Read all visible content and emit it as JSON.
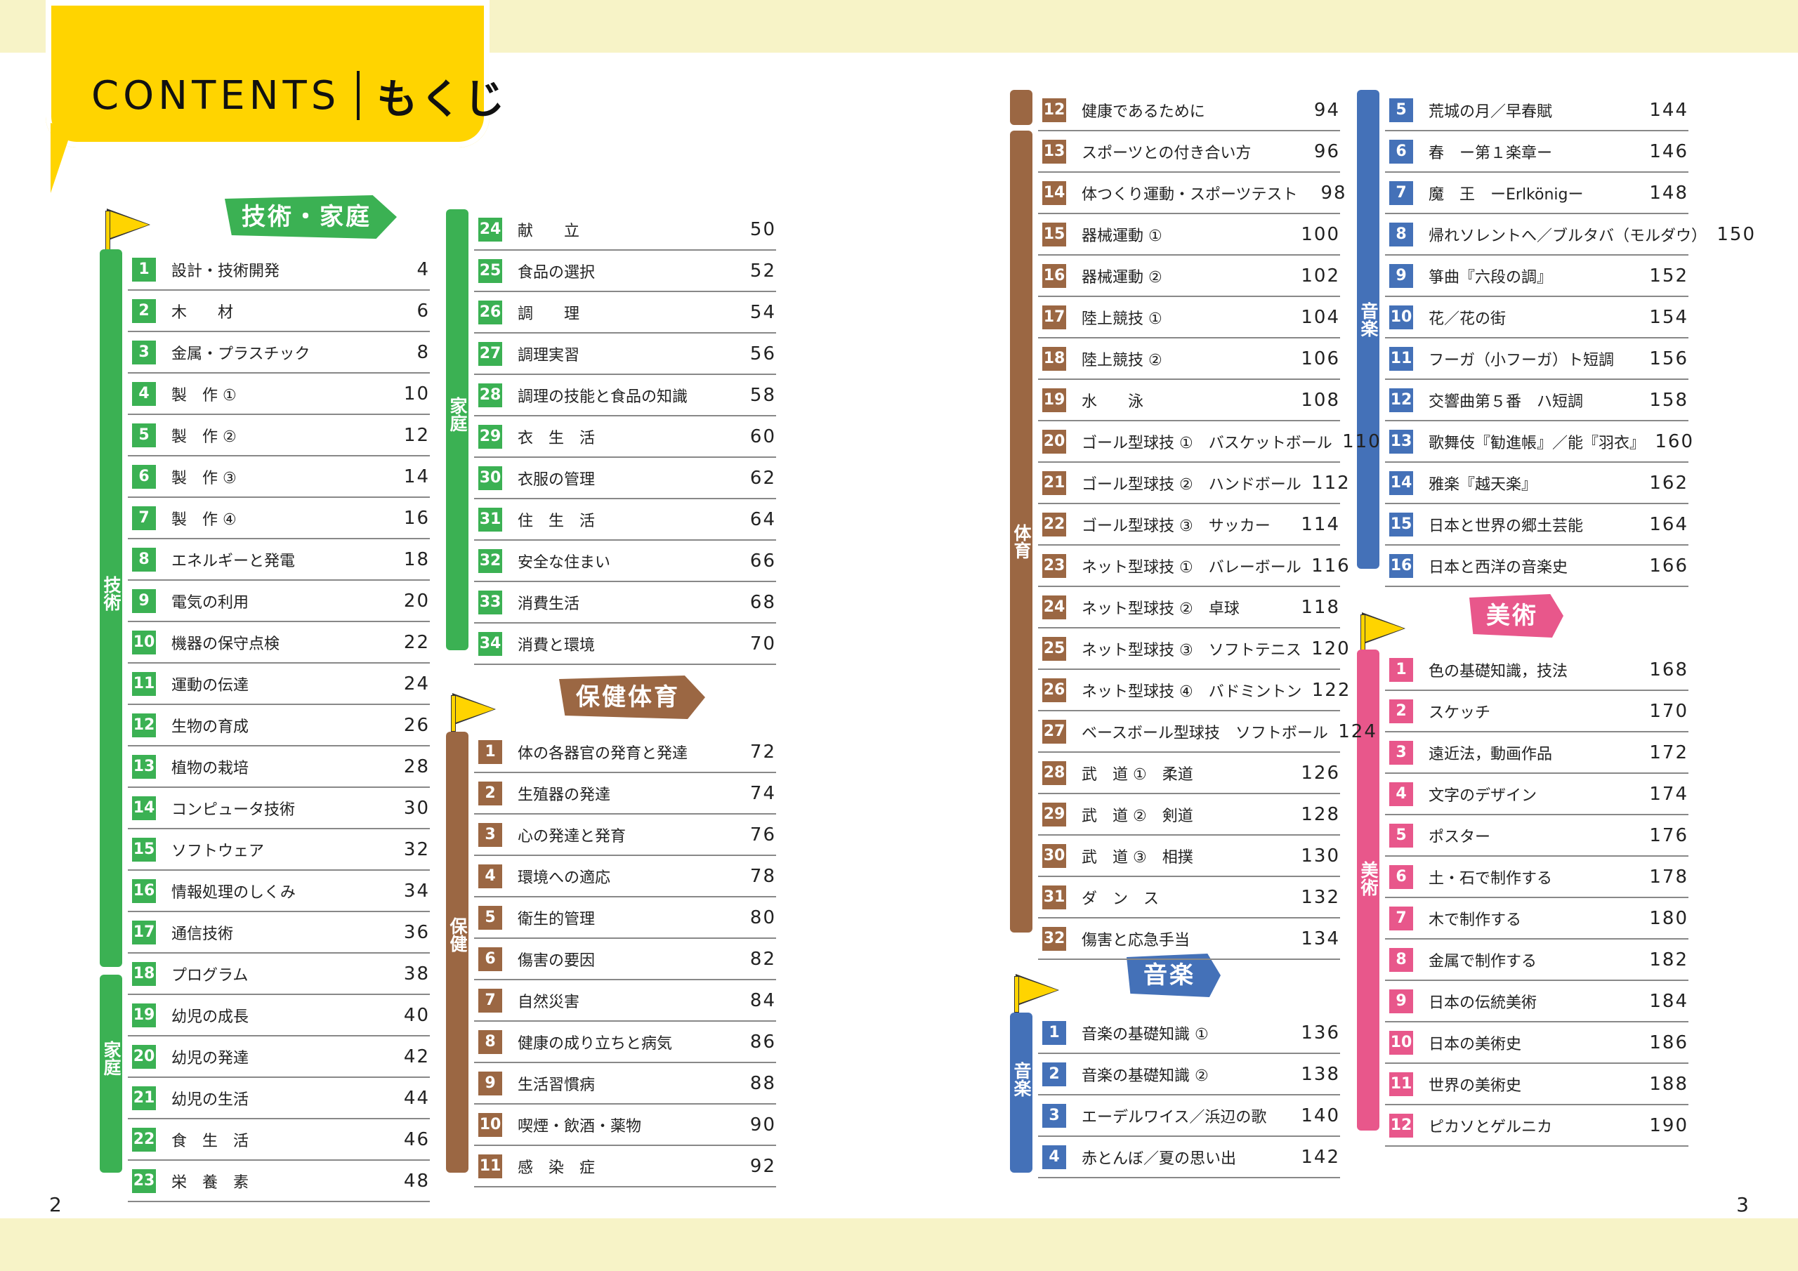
{
  "header": {
    "title_en": "CONTENTS",
    "title_jp": "もくじ"
  },
  "colors": {
    "green": "#3bb153",
    "brown": "#9b6743",
    "blue": "#4471b8",
    "pink": "#e8578b",
    "yellow": "#ffd400"
  },
  "tags": {
    "gijutsu_katei": "技術・家庭",
    "hoken_taiiku": "保健体育",
    "ongaku": "音楽",
    "bijutsu": "美術"
  },
  "bars": {
    "gijutsu": "技術",
    "katei_left": "家庭",
    "katei_mid": "家庭",
    "hoken": "保健",
    "taiiku": "体育",
    "ongaku_top": "音楽",
    "ongaku_bottom": "音楽",
    "bijutsu": "美術"
  },
  "lists": {
    "gijutsu_katei_1": [
      {
        "num": "1",
        "title": "設計・技術開発",
        "page": "4"
      },
      {
        "num": "2",
        "title": "木　　材",
        "page": "6"
      },
      {
        "num": "3",
        "title": "金属・プラスチック",
        "page": "8"
      },
      {
        "num": "4",
        "title": "製　作 ①",
        "page": "10"
      },
      {
        "num": "5",
        "title": "製　作 ②",
        "page": "12"
      },
      {
        "num": "6",
        "title": "製　作 ③",
        "page": "14"
      },
      {
        "num": "7",
        "title": "製　作 ④",
        "page": "16"
      },
      {
        "num": "8",
        "title": "エネルギーと発電",
        "page": "18"
      },
      {
        "num": "9",
        "title": "電気の利用",
        "page": "20"
      },
      {
        "num": "10",
        "title": "機器の保守点検",
        "page": "22"
      },
      {
        "num": "11",
        "title": "運動の伝達",
        "page": "24"
      },
      {
        "num": "12",
        "title": "生物の育成",
        "page": "26"
      },
      {
        "num": "13",
        "title": "植物の栽培",
        "page": "28"
      },
      {
        "num": "14",
        "title": "コンピュータ技術",
        "page": "30"
      },
      {
        "num": "15",
        "title": "ソフトウェア",
        "page": "32"
      },
      {
        "num": "16",
        "title": "情報処理のしくみ",
        "page": "34"
      },
      {
        "num": "17",
        "title": "通信技術",
        "page": "36"
      },
      {
        "num": "18",
        "title": "プログラム",
        "page": "38"
      },
      {
        "num": "19",
        "title": "幼児の成長",
        "page": "40"
      },
      {
        "num": "20",
        "title": "幼児の発達",
        "page": "42"
      },
      {
        "num": "21",
        "title": "幼児の生活",
        "page": "44"
      },
      {
        "num": "22",
        "title": "食　生　活",
        "page": "46"
      },
      {
        "num": "23",
        "title": "栄　養　素",
        "page": "48"
      }
    ],
    "gijutsu_katei_2": [
      {
        "num": "24",
        "title": "献　　立",
        "page": "50"
      },
      {
        "num": "25",
        "title": "食品の選択",
        "page": "52"
      },
      {
        "num": "26",
        "title": "調　　理",
        "page": "54"
      },
      {
        "num": "27",
        "title": "調理実習",
        "page": "56"
      },
      {
        "num": "28",
        "title": "調理の技能と食品の知識",
        "page": "58"
      },
      {
        "num": "29",
        "title": "衣　生　活",
        "page": "60"
      },
      {
        "num": "30",
        "title": "衣服の管理",
        "page": "62"
      },
      {
        "num": "31",
        "title": "住　生　活",
        "page": "64"
      },
      {
        "num": "32",
        "title": "安全な住まい",
        "page": "66"
      },
      {
        "num": "33",
        "title": "消費生活",
        "page": "68"
      },
      {
        "num": "34",
        "title": "消費と環境",
        "page": "70"
      }
    ],
    "hoken_taiiku_1": [
      {
        "num": "1",
        "title": "体の各器官の発育と発達",
        "page": "72"
      },
      {
        "num": "2",
        "title": "生殖器の発達",
        "page": "74"
      },
      {
        "num": "3",
        "title": "心の発達と発育",
        "page": "76"
      },
      {
        "num": "4",
        "title": "環境への適応",
        "page": "78"
      },
      {
        "num": "5",
        "title": "衛生的管理",
        "page": "80"
      },
      {
        "num": "6",
        "title": "傷害の要因",
        "page": "82"
      },
      {
        "num": "7",
        "title": "自然災害",
        "page": "84"
      },
      {
        "num": "8",
        "title": "健康の成り立ちと病気",
        "page": "86"
      },
      {
        "num": "9",
        "title": "生活習慣病",
        "page": "88"
      },
      {
        "num": "10",
        "title": "喫煙・飲酒・薬物",
        "page": "90"
      },
      {
        "num": "11",
        "title": "感　染　症",
        "page": "92"
      }
    ],
    "hoken_taiiku_2": [
      {
        "num": "12",
        "title": "健康であるために",
        "page": "94"
      },
      {
        "num": "13",
        "title": "スポーツとの付き合い方",
        "page": "96"
      },
      {
        "num": "14",
        "title": "体つくり運動・スポーツテスト",
        "page": "98"
      },
      {
        "num": "15",
        "title": "器械運動 ①",
        "page": "100"
      },
      {
        "num": "16",
        "title": "器械運動 ②",
        "page": "102"
      },
      {
        "num": "17",
        "title": "陸上競技 ①",
        "page": "104"
      },
      {
        "num": "18",
        "title": "陸上競技 ②",
        "page": "106"
      },
      {
        "num": "19",
        "title": "水　　泳",
        "page": "108"
      },
      {
        "num": "20",
        "title": "ゴール型球技 ①　バスケットボール",
        "page": "110"
      },
      {
        "num": "21",
        "title": "ゴール型球技 ②　ハンドボール",
        "page": "112"
      },
      {
        "num": "22",
        "title": "ゴール型球技 ③　サッカー",
        "page": "114"
      },
      {
        "num": "23",
        "title": "ネット型球技 ①　バレーボール",
        "page": "116"
      },
      {
        "num": "24",
        "title": "ネット型球技 ②　卓球",
        "page": "118"
      },
      {
        "num": "25",
        "title": "ネット型球技 ③　ソフトテニス",
        "page": "120"
      },
      {
        "num": "26",
        "title": "ネット型球技 ④　バドミントン",
        "page": "122"
      },
      {
        "num": "27",
        "title": "ベースボール型球技　ソフトボール",
        "page": "124"
      },
      {
        "num": "28",
        "title": "武　道 ①　柔道",
        "page": "126"
      },
      {
        "num": "29",
        "title": "武　道 ②　剣道",
        "page": "128"
      },
      {
        "num": "30",
        "title": "武　道 ③　相撲",
        "page": "130"
      },
      {
        "num": "31",
        "title": "ダ　ン　ス",
        "page": "132"
      },
      {
        "num": "32",
        "title": "傷害と応急手当",
        "page": "134"
      }
    ],
    "ongaku_1": [
      {
        "num": "1",
        "title": "音楽の基礎知識 ①",
        "page": "136"
      },
      {
        "num": "2",
        "title": "音楽の基礎知識 ②",
        "page": "138"
      },
      {
        "num": "3",
        "title": "エーデルワイス／浜辺の歌",
        "page": "140"
      },
      {
        "num": "4",
        "title": "赤とんぼ／夏の思い出",
        "page": "142"
      }
    ],
    "ongaku_2": [
      {
        "num": "5",
        "title": "荒城の月／早春賦",
        "page": "144"
      },
      {
        "num": "6",
        "title": "春　ー第１楽章ー",
        "page": "146"
      },
      {
        "num": "7",
        "title": "魔　王　ーErlkönigー",
        "page": "148"
      },
      {
        "num": "8",
        "title": "帰れソレントへ／ブルタバ（モルダウ）",
        "page": "150"
      },
      {
        "num": "9",
        "title": "箏曲『六段の調』",
        "page": "152"
      },
      {
        "num": "10",
        "title": "花／花の街",
        "page": "154"
      },
      {
        "num": "11",
        "title": "フーガ（小フーガ）ト短調",
        "page": "156"
      },
      {
        "num": "12",
        "title": "交響曲第５番　ハ短調",
        "page": "158"
      },
      {
        "num": "13",
        "title": "歌舞伎『勧進帳』／能『羽衣』",
        "page": "160"
      },
      {
        "num": "14",
        "title": "雅楽『越天楽』",
        "page": "162"
      },
      {
        "num": "15",
        "title": "日本と世界の郷土芸能",
        "page": "164"
      },
      {
        "num": "16",
        "title": "日本と西洋の音楽史",
        "page": "166"
      }
    ],
    "bijutsu": [
      {
        "num": "1",
        "title": "色の基礎知識，技法",
        "page": "168"
      },
      {
        "num": "2",
        "title": "スケッチ",
        "page": "170"
      },
      {
        "num": "3",
        "title": "遠近法，動画作品",
        "page": "172"
      },
      {
        "num": "4",
        "title": "文字のデザイン",
        "page": "174"
      },
      {
        "num": "5",
        "title": "ポスター",
        "page": "176"
      },
      {
        "num": "6",
        "title": "土・石で制作する",
        "page": "178"
      },
      {
        "num": "7",
        "title": "木で制作する",
        "page": "180"
      },
      {
        "num": "8",
        "title": "金属で制作する",
        "page": "182"
      },
      {
        "num": "9",
        "title": "日本の伝統美術",
        "page": "184"
      },
      {
        "num": "10",
        "title": "日本の美術史",
        "page": "186"
      },
      {
        "num": "11",
        "title": "世界の美術史",
        "page": "188"
      },
      {
        "num": "12",
        "title": "ピカソとゲルニカ",
        "page": "190"
      }
    ]
  },
  "folios": {
    "left": "2",
    "right": "3"
  }
}
